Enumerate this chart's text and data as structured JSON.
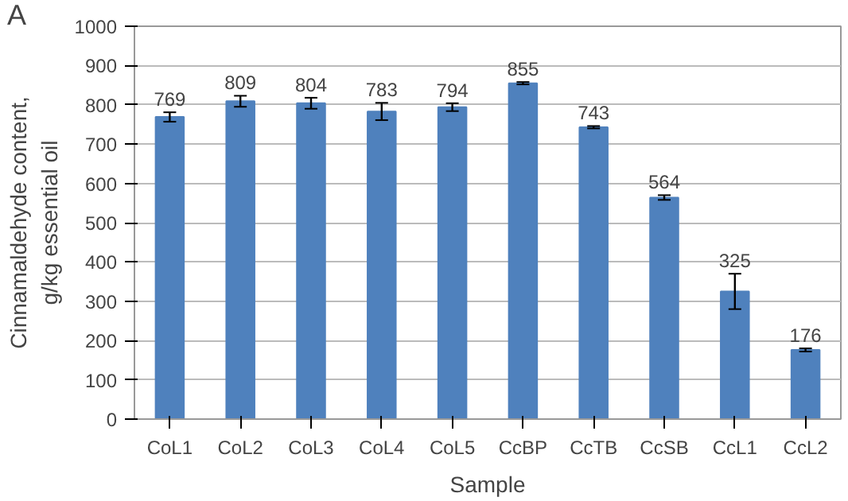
{
  "chart_data": {
    "type": "bar",
    "xlabel": "Sample",
    "ylabel": "Cinnamaldehyde content,\ng/kg essential oil",
    "annotations": [
      "A"
    ],
    "categories": [
      "CoL1",
      "CoL2",
      "CoL3",
      "CoL4",
      "CoL5",
      "CcBP",
      "CcTB",
      "CcSB",
      "CcL1",
      "CcL2"
    ],
    "values": [
      769,
      809,
      804,
      783,
      794,
      855,
      743,
      564,
      325,
      176
    ],
    "errors": [
      12,
      14,
      14,
      22,
      10,
      3,
      3,
      6,
      45,
      4
    ],
    "color": "#4f81bd",
    "data_labels": true,
    "grid": "y",
    "ylim": [
      0,
      1000
    ],
    "yticks": [
      0,
      100,
      200,
      300,
      400,
      500,
      600,
      700,
      800,
      900,
      1000
    ]
  }
}
